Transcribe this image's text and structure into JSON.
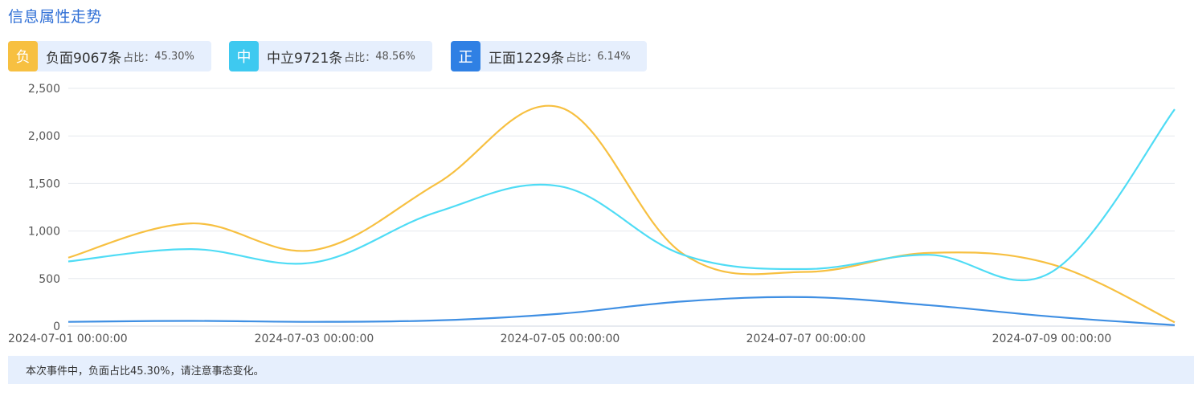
{
  "header": {
    "title": "信息属性走势"
  },
  "badges": [
    {
      "tag": "负",
      "label": "负面9067条",
      "ratio_label": "占比：",
      "ratio": "45.30%",
      "color": "#f7c041"
    },
    {
      "tag": "中",
      "label": "中立9721条",
      "ratio_label": "占比：",
      "ratio": "48.56%",
      "color": "#3ec9f0"
    },
    {
      "tag": "正",
      "label": "正面1229条",
      "ratio_label": "占比：",
      "ratio": "6.14%",
      "color": "#2f80e4"
    }
  ],
  "footer": {
    "text": "本次事件中，负面占比45.30%，请注意事态变化。"
  },
  "chart_data": {
    "type": "line",
    "smooth": true,
    "x": [
      "2024-07-01",
      "2024-07-02",
      "2024-07-03",
      "2024-07-04",
      "2024-07-05",
      "2024-07-06",
      "2024-07-07",
      "2024-07-08",
      "2024-07-09",
      "2024-07-10"
    ],
    "x_tick_labels": [
      "2024-07-01 00:00:00",
      "2024-07-03 00:00:00",
      "2024-07-05 00:00:00",
      "2024-07-07 00:00:00",
      "2024-07-09 00:00:00"
    ],
    "ylim": [
      0,
      2500
    ],
    "y_ticks": [
      0,
      500,
      1000,
      1500,
      2000,
      2500
    ],
    "y_tick_labels": [
      "0",
      "500",
      "1,000",
      "1,500",
      "2,000",
      "2,500"
    ],
    "grid": true,
    "series": [
      {
        "name": "负面",
        "color": "#f7c041",
        "values": [
          720,
          1080,
          800,
          1500,
          2300,
          760,
          570,
          770,
          650,
          40
        ]
      },
      {
        "name": "中立",
        "color": "#4fdcf5",
        "values": [
          680,
          810,
          670,
          1200,
          1470,
          750,
          600,
          750,
          570,
          2280
        ]
      },
      {
        "name": "正面",
        "color": "#3f8fe3",
        "values": [
          45,
          55,
          45,
          60,
          130,
          260,
          305,
          220,
          100,
          10
        ]
      }
    ]
  }
}
